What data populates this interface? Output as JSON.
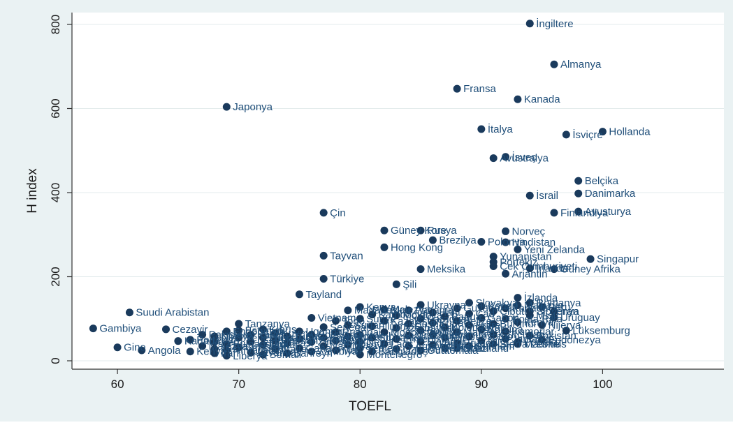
{
  "chart_data": {
    "type": "scatter",
    "title": "",
    "xlabel": "TOEFL",
    "ylabel": "H index",
    "xlim": [
      57,
      110
    ],
    "ylim": [
      -18,
      820
    ],
    "xticks": [
      60,
      70,
      80,
      90,
      100
    ],
    "yticks": [
      0,
      200,
      400,
      600,
      800
    ],
    "grid": "horizontal",
    "colors": {
      "marker": "#1a3a5c",
      "label": "#1f4e79",
      "plot_bg": "#ffffff",
      "outer_bg": "#eaf2f3",
      "grid": "#e3ebec"
    },
    "points": [
      {
        "x": 94,
        "y": 802,
        "label": "İngiltere"
      },
      {
        "x": 96,
        "y": 705,
        "label": "Almanya"
      },
      {
        "x": 88,
        "y": 647,
        "label": "Fransa"
      },
      {
        "x": 93,
        "y": 622,
        "label": "Kanada"
      },
      {
        "x": 69,
        "y": 604,
        "label": "Japonya"
      },
      {
        "x": 90,
        "y": 551,
        "label": "İtalya"
      },
      {
        "x": 100,
        "y": 545,
        "label": "Hollanda"
      },
      {
        "x": 97,
        "y": 538,
        "label": "İsviçre"
      },
      {
        "x": 92,
        "y": 485,
        "label": "İsveç"
      },
      {
        "x": 91,
        "y": 482,
        "label": "Avustralya"
      },
      {
        "x": 98,
        "y": 428,
        "label": "Belçika"
      },
      {
        "x": 98,
        "y": 398,
        "label": "Danimarka"
      },
      {
        "x": 94,
        "y": 393,
        "label": "İsrail"
      },
      {
        "x": 98,
        "y": 355,
        "label": "Avusturya"
      },
      {
        "x": 96,
        "y": 352,
        "label": "Finlandiya"
      },
      {
        "x": 77,
        "y": 352,
        "label": "Çin"
      },
      {
        "x": 82,
        "y": 310,
        "label": "Güney Kore"
      },
      {
        "x": 85,
        "y": 310,
        "label": "Rusya"
      },
      {
        "x": 92,
        "y": 308,
        "label": "Norveç"
      },
      {
        "x": 86,
        "y": 287,
        "label": "Brezilya"
      },
      {
        "x": 90,
        "y": 283,
        "label": "Polonya"
      },
      {
        "x": 92,
        "y": 282,
        "label": "Hindistan"
      },
      {
        "x": 82,
        "y": 270,
        "label": "Hong Kong"
      },
      {
        "x": 93,
        "y": 265,
        "label": "Yeni Zelanda"
      },
      {
        "x": 77,
        "y": 250,
        "label": "Tayvan"
      },
      {
        "x": 91,
        "y": 248,
        "label": "Yunanistan"
      },
      {
        "x": 99,
        "y": 242,
        "label": "Singapur"
      },
      {
        "x": 91,
        "y": 235,
        "label": "Portekiz"
      },
      {
        "x": 91,
        "y": 225,
        "label": "Çek Cumhuriyeti"
      },
      {
        "x": 94,
        "y": 220,
        "label": "İrlanda"
      },
      {
        "x": 96,
        "y": 218,
        "label": "Güney Afrika"
      },
      {
        "x": 85,
        "y": 218,
        "label": "Meksika"
      },
      {
        "x": 92,
        "y": 207,
        "label": "Arjantin"
      },
      {
        "x": 77,
        "y": 195,
        "label": "Türkiye"
      },
      {
        "x": 83,
        "y": 182,
        "label": "Şili"
      },
      {
        "x": 75,
        "y": 158,
        "label": "Tayland"
      },
      {
        "x": 93,
        "y": 150,
        "label": "İzlanda"
      },
      {
        "x": 89,
        "y": 138,
        "label": "Slovakya"
      },
      {
        "x": 94,
        "y": 138,
        "label": "Romanya"
      },
      {
        "x": 85,
        "y": 133,
        "label": "Ukrayna"
      },
      {
        "x": 80,
        "y": 128,
        "label": "Kenya"
      },
      {
        "x": 82,
        "y": 122,
        "label": "Malezya"
      },
      {
        "x": 94,
        "y": 118,
        "label": "Slovenya"
      },
      {
        "x": 61,
        "y": 115,
        "label": "Suudi Arabistan"
      },
      {
        "x": 96,
        "y": 103,
        "label": "Uruguay"
      },
      {
        "x": 92,
        "y": 100,
        "label": "Kosta Rika"
      },
      {
        "x": 76,
        "y": 102,
        "label": "Vietnam"
      },
      {
        "x": 70,
        "y": 88,
        "label": "Tanzanya"
      },
      {
        "x": 87,
        "y": 80,
        "label": "Kolombiya"
      },
      {
        "x": 58,
        "y": 77,
        "label": "Gambiya"
      },
      {
        "x": 64,
        "y": 75,
        "label": "Cezayir"
      },
      {
        "x": 97,
        "y": 72,
        "label": "Lüksemburg"
      },
      {
        "x": 91,
        "y": 62,
        "label": "Gürcistan"
      },
      {
        "x": 92,
        "y": 52,
        "label": "Jamaika"
      },
      {
        "x": 93,
        "y": 40,
        "label": "Mauritius"
      },
      {
        "x": 88,
        "y": 30,
        "label": "Svaziland"
      },
      {
        "x": 60,
        "y": 32,
        "label": "Gine"
      },
      {
        "x": 62,
        "y": 25,
        "label": "Angola"
      },
      {
        "x": 72,
        "y": 15,
        "label": "Somali"
      },
      {
        "x": 69,
        "y": 12,
        "label": "Liberya"
      },
      {
        "x": 80,
        "y": 15,
        "label": "Montenegro"
      }
    ],
    "cluster_points": [
      {
        "x": 65,
        "y": 47
      },
      {
        "x": 66,
        "y": 50
      },
      {
        "x": 66,
        "y": 22
      },
      {
        "x": 67,
        "y": 35
      },
      {
        "x": 67,
        "y": 62
      },
      {
        "x": 68,
        "y": 28
      },
      {
        "x": 68,
        "y": 45
      },
      {
        "x": 68,
        "y": 58
      },
      {
        "x": 68,
        "y": 18
      },
      {
        "x": 69,
        "y": 70
      },
      {
        "x": 69,
        "y": 40
      },
      {
        "x": 69,
        "y": 25
      },
      {
        "x": 70,
        "y": 55
      },
      {
        "x": 70,
        "y": 32
      },
      {
        "x": 70,
        "y": 72
      },
      {
        "x": 71,
        "y": 45
      },
      {
        "x": 71,
        "y": 20
      },
      {
        "x": 71,
        "y": 62
      },
      {
        "x": 72,
        "y": 38
      },
      {
        "x": 72,
        "y": 55
      },
      {
        "x": 72,
        "y": 75
      },
      {
        "x": 73,
        "y": 28
      },
      {
        "x": 73,
        "y": 48
      },
      {
        "x": 73,
        "y": 66
      },
      {
        "x": 74,
        "y": 18
      },
      {
        "x": 74,
        "y": 42
      },
      {
        "x": 74,
        "y": 58
      },
      {
        "x": 75,
        "y": 30
      },
      {
        "x": 75,
        "y": 52
      },
      {
        "x": 75,
        "y": 70
      },
      {
        "x": 76,
        "y": 22
      },
      {
        "x": 76,
        "y": 45
      },
      {
        "x": 76,
        "y": 62
      },
      {
        "x": 77,
        "y": 35
      },
      {
        "x": 77,
        "y": 55
      },
      {
        "x": 77,
        "y": 80
      },
      {
        "x": 78,
        "y": 25
      },
      {
        "x": 78,
        "y": 48
      },
      {
        "x": 78,
        "y": 95
      },
      {
        "x": 78,
        "y": 68
      },
      {
        "x": 79,
        "y": 38
      },
      {
        "x": 79,
        "y": 58
      },
      {
        "x": 79,
        "y": 120
      },
      {
        "x": 79,
        "y": 85
      },
      {
        "x": 80,
        "y": 30
      },
      {
        "x": 80,
        "y": 62
      },
      {
        "x": 80,
        "y": 100
      },
      {
        "x": 80,
        "y": 45
      },
      {
        "x": 81,
        "y": 22
      },
      {
        "x": 81,
        "y": 55
      },
      {
        "x": 81,
        "y": 82
      },
      {
        "x": 81,
        "y": 110
      },
      {
        "x": 82,
        "y": 40
      },
      {
        "x": 82,
        "y": 68
      },
      {
        "x": 82,
        "y": 95
      },
      {
        "x": 83,
        "y": 28
      },
      {
        "x": 83,
        "y": 52
      },
      {
        "x": 83,
        "y": 78
      },
      {
        "x": 83,
        "y": 108
      },
      {
        "x": 84,
        "y": 35
      },
      {
        "x": 84,
        "y": 60
      },
      {
        "x": 84,
        "y": 88
      },
      {
        "x": 84,
        "y": 120
      },
      {
        "x": 85,
        "y": 45
      },
      {
        "x": 85,
        "y": 72
      },
      {
        "x": 85,
        "y": 100
      },
      {
        "x": 85,
        "y": 25
      },
      {
        "x": 86,
        "y": 38
      },
      {
        "x": 86,
        "y": 62
      },
      {
        "x": 86,
        "y": 90
      },
      {
        "x": 86,
        "y": 115
      },
      {
        "x": 87,
        "y": 30
      },
      {
        "x": 87,
        "y": 55
      },
      {
        "x": 87,
        "y": 105
      },
      {
        "x": 88,
        "y": 42
      },
      {
        "x": 88,
        "y": 68
      },
      {
        "x": 88,
        "y": 95
      },
      {
        "x": 88,
        "y": 125
      },
      {
        "x": 89,
        "y": 35
      },
      {
        "x": 89,
        "y": 58
      },
      {
        "x": 89,
        "y": 85
      },
      {
        "x": 89,
        "y": 112
      },
      {
        "x": 90,
        "y": 48
      },
      {
        "x": 90,
        "y": 75
      },
      {
        "x": 90,
        "y": 102
      },
      {
        "x": 90,
        "y": 130
      },
      {
        "x": 91,
        "y": 40
      },
      {
        "x": 91,
        "y": 88
      },
      {
        "x": 91,
        "y": 118
      },
      {
        "x": 92,
        "y": 70
      },
      {
        "x": 92,
        "y": 125
      },
      {
        "x": 93,
        "y": 45
      },
      {
        "x": 93,
        "y": 92
      },
      {
        "x": 93,
        "y": 132
      },
      {
        "x": 94,
        "y": 60
      },
      {
        "x": 94,
        "y": 108
      },
      {
        "x": 95,
        "y": 128
      },
      {
        "x": 95,
        "y": 85
      },
      {
        "x": 96,
        "y": 118
      },
      {
        "x": 95,
        "y": 50
      }
    ],
    "cluster_labels": [
      "Kanada",
      "Portekiz",
      "Kenya",
      "Malezya",
      "Pakistan",
      "Mısır",
      "Peru",
      "Nijerya",
      "İran",
      "Endonezya",
      "Bulgaristan",
      "Hırvatistan",
      "Venezuela",
      "Sırbistan",
      "Estonya",
      "Letonya",
      "Litvanya",
      "Katar",
      "Ürdün",
      "Lübnan",
      "Kıbrıs",
      "Malta",
      "Umman",
      "Kuveyt",
      "Bahreyn",
      "Fas",
      "Tunus",
      "Gana",
      "Etiyopya",
      "Uganda",
      "Zambiya",
      "Zimbabve",
      "Botsvana",
      "Namibya",
      "Kamerun",
      "Senegal",
      "Mali",
      "Benin",
      "Togo",
      "Ruanda",
      "Malavi",
      "Mozambik",
      "Madagaskar",
      "Sudan",
      "Yemen",
      "Irak",
      "Suriye",
      "Nepal",
      "Bangladeş",
      "Sri Lanka",
      "Filipinler",
      "Kamboçya",
      "Laos",
      "Moğolistan",
      "Kazakistan",
      "Özbekistan",
      "Ermenistan",
      "Azerbaycan",
      "Moldova",
      "Arnavutluk",
      "Makedonya",
      "Bosna",
      "Panama",
      "Ekvador",
      "Bolivya",
      "Paraguay",
      "Guatemala",
      "Honduras",
      "Nikaragua",
      "Küba",
      "Haiti",
      "Trinidad",
      "Fiji",
      "Papua",
      "Brunei",
      "Makao",
      "Belize",
      "Guyana",
      "Surinam",
      "Lesotho",
      "Eritre",
      "Çad",
      "Nijer",
      "Burkina",
      "Gabon",
      "Kongo",
      "Sierra Leone",
      "Burundi",
      "Cibuti",
      "Komorlar"
    ]
  }
}
